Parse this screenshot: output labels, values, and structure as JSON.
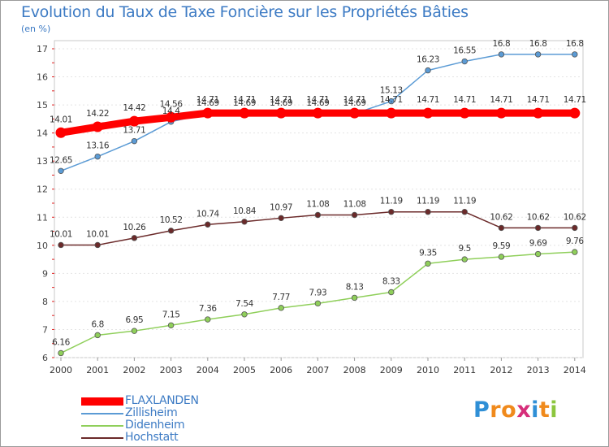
{
  "title": "Evolution du Taux de Taxe Foncière sur les Propriétés Bâties",
  "unit_label": "(en %)",
  "logo": {
    "letters": [
      "P",
      "r",
      "o",
      "x",
      "i",
      "t",
      "i"
    ],
    "colors": [
      "#2f8fd6",
      "#f08a1c",
      "#f08a1c",
      "#d62e7a",
      "#2f8fd6",
      "#f08a1c",
      "#8cc63e"
    ]
  },
  "chart_data": {
    "type": "line",
    "title": "Evolution du Taux de Taxe Foncière sur les Propriétés Bâties",
    "ylabel": "(en %)",
    "xlabel": "",
    "x": [
      "2000",
      "2001",
      "2002",
      "2003",
      "2004",
      "2005",
      "2006",
      "2007",
      "2008",
      "2009",
      "2010",
      "2011",
      "2012",
      "2013",
      "2014"
    ],
    "ylim": [
      6,
      17
    ],
    "yticks": [
      "6",
      "7",
      "8",
      "9",
      "10",
      "11",
      "12",
      "13",
      "14",
      "15",
      "16",
      "17"
    ],
    "series": [
      {
        "name": "FLAXLANDEN",
        "color": "#ff0000",
        "thick": true,
        "values": [
          14.01,
          14.22,
          14.42,
          14.56,
          14.71,
          14.71,
          14.71,
          14.71,
          14.71,
          14.71,
          14.71,
          14.71,
          14.71,
          14.71,
          14.71
        ],
        "labels": [
          "14.01",
          "14.22",
          "14.42",
          "14.56",
          "14.71",
          "14.71",
          "14.71",
          "14.71",
          "14.71",
          "14.71",
          "14.71",
          "14.71",
          "14.71",
          "14.71",
          "14.71"
        ]
      },
      {
        "name": "Zillisheim",
        "color": "#5b9bd5",
        "values": [
          12.65,
          13.16,
          13.71,
          14.4,
          14.69,
          14.69,
          14.69,
          14.69,
          14.69,
          15.13,
          16.23,
          16.55,
          16.8,
          16.8,
          16.8
        ],
        "labels": [
          "12.65",
          "13.16",
          "13.71",
          "14.4",
          "14.69",
          "14.69",
          "14.69",
          "14.69",
          "14.69",
          "15.13",
          "16.23",
          "16.55",
          "16.8",
          "16.8",
          "16.8"
        ]
      },
      {
        "name": "Didenheim",
        "color": "#8fcf5a",
        "values": [
          6.16,
          6.8,
          6.95,
          7.15,
          7.36,
          7.54,
          7.77,
          7.93,
          8.13,
          8.33,
          9.35,
          9.5,
          9.59,
          9.69,
          9.76
        ],
        "labels": [
          "6.16",
          "6.8",
          "6.95",
          "7.15",
          "7.36",
          "7.54",
          "7.77",
          "7.93",
          "8.13",
          "8.33",
          "9.35",
          "9.5",
          "9.59",
          "9.69",
          "9.76"
        ]
      },
      {
        "name": "Hochstatt",
        "color": "#6b2a2a",
        "values": [
          10.01,
          10.01,
          10.26,
          10.52,
          10.74,
          10.84,
          10.97,
          11.08,
          11.08,
          11.19,
          11.19,
          11.19,
          10.62,
          10.62,
          10.62
        ],
        "labels": [
          "10.01",
          "10.01",
          "10.26",
          "10.52",
          "10.74",
          "10.84",
          "10.97",
          "11.08",
          "11.08",
          "11.19",
          "11.19",
          "11.19",
          "10.62",
          "10.62",
          "10.62"
        ]
      }
    ]
  }
}
